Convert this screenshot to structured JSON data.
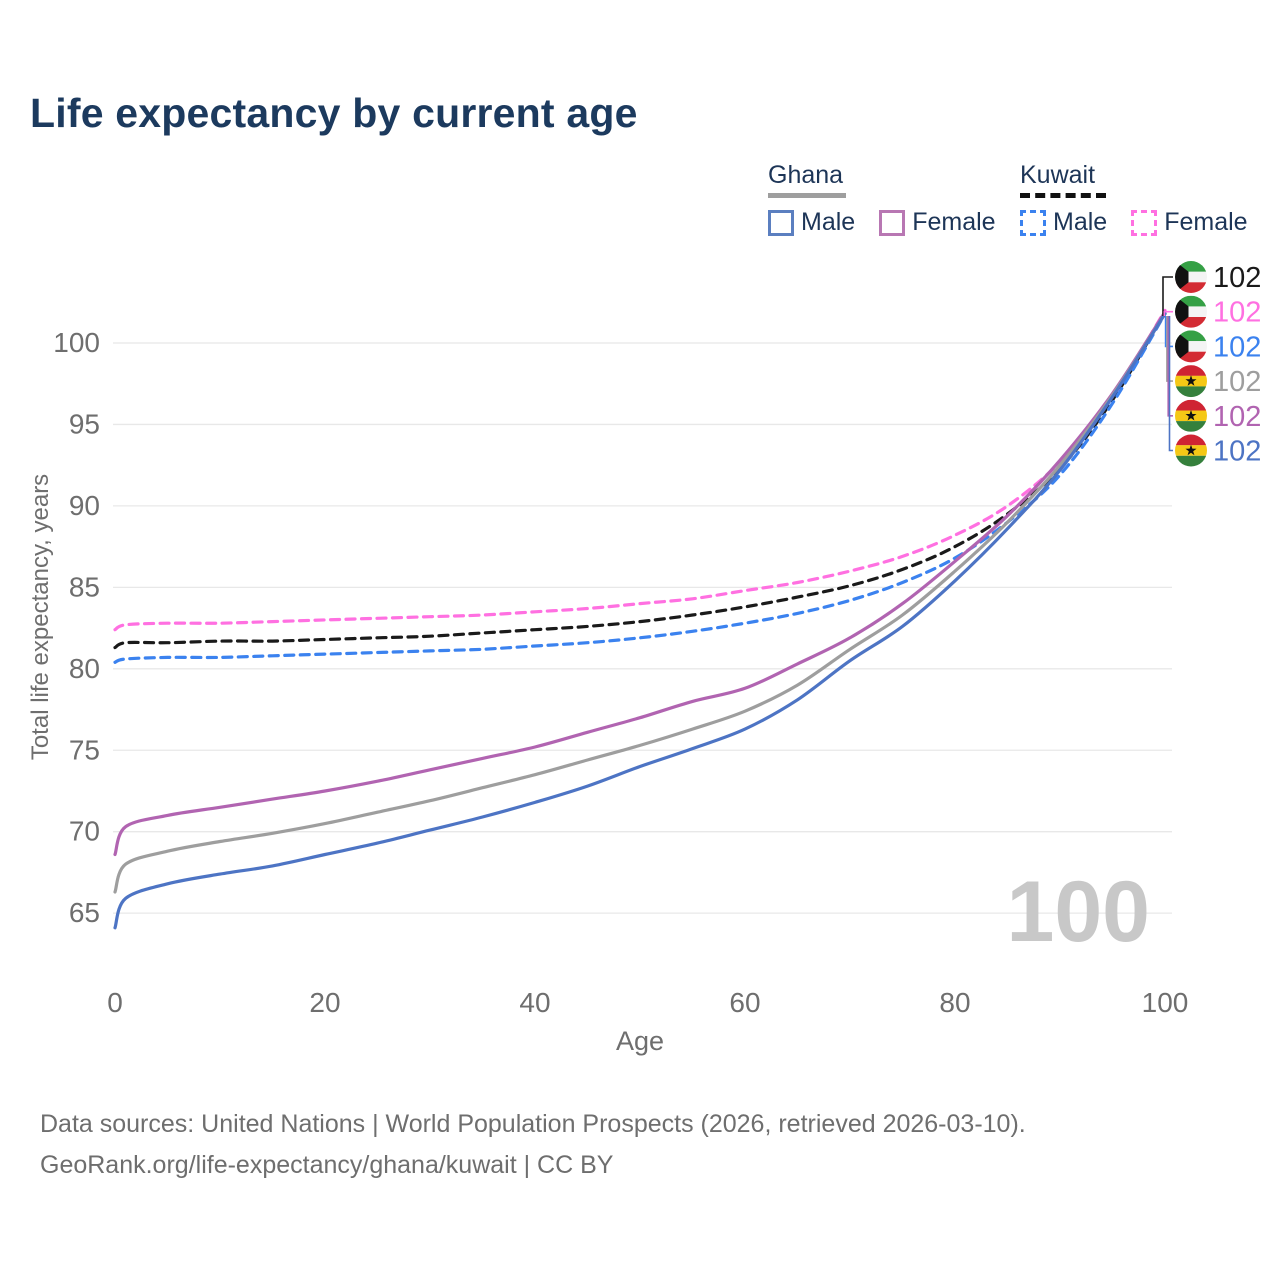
{
  "title": "Life expectancy by current age",
  "watermark_age": "100",
  "legend": {
    "groups": [
      {
        "country": "Ghana",
        "line_style": "solid",
        "line_color": "#9e9e9e",
        "items": [
          {
            "label": "Male",
            "color": "#5b7fc0",
            "style": "solid"
          },
          {
            "label": "Female",
            "color": "#b877b3",
            "style": "solid"
          }
        ]
      },
      {
        "country": "Kuwait",
        "line_style": "dashed",
        "line_color": "#111111",
        "items": [
          {
            "label": "Male",
            "color": "#3b82ef",
            "style": "dashed"
          },
          {
            "label": "Female",
            "color": "#ff70e1",
            "style": "dashed"
          }
        ]
      }
    ]
  },
  "chart_data": {
    "type": "line",
    "title": "Life expectancy by current age",
    "xlabel": "Age",
    "ylabel": "Total life expectancy, years",
    "xlim": [
      0,
      100
    ],
    "ylim": [
      63,
      103
    ],
    "x_ticks": [
      0,
      20,
      40,
      60,
      80,
      100
    ],
    "y_ticks": [
      65,
      70,
      75,
      80,
      85,
      90,
      95,
      100
    ],
    "grid": "horizontal",
    "legend_position": "top-right",
    "x": [
      0,
      1,
      5,
      10,
      15,
      20,
      25,
      30,
      35,
      40,
      45,
      50,
      55,
      60,
      65,
      70,
      75,
      80,
      85,
      90,
      95,
      100
    ],
    "series": [
      {
        "name": "Kuwait Female",
        "country": "Kuwait",
        "sex": "female",
        "color": "#ff70e1",
        "dash": true,
        "values": [
          82.4,
          82.7,
          82.8,
          82.8,
          82.9,
          83.0,
          83.1,
          83.2,
          83.3,
          83.5,
          83.7,
          84.0,
          84.3,
          84.8,
          85.3,
          86.0,
          86.9,
          88.2,
          90.0,
          92.7,
          96.7,
          102.0
        ]
      },
      {
        "name": "Kuwait",
        "country": "Kuwait",
        "sex": "all",
        "color": "#1a1a1a",
        "dash": true,
        "values": [
          81.3,
          81.6,
          81.6,
          81.7,
          81.7,
          81.8,
          81.9,
          82.0,
          82.2,
          82.4,
          82.6,
          82.9,
          83.3,
          83.8,
          84.4,
          85.1,
          86.1,
          87.5,
          89.5,
          92.3,
          96.5,
          101.9
        ]
      },
      {
        "name": "Kuwait Male",
        "country": "Kuwait",
        "sex": "male",
        "color": "#3b82ef",
        "dash": true,
        "values": [
          80.4,
          80.6,
          80.7,
          80.7,
          80.8,
          80.9,
          81.0,
          81.1,
          81.2,
          81.4,
          81.6,
          81.9,
          82.3,
          82.8,
          83.4,
          84.2,
          85.3,
          86.8,
          89.0,
          91.9,
          96.3,
          101.8
        ]
      },
      {
        "name": "Ghana Female",
        "country": "Ghana",
        "sex": "female",
        "color": "#b164b1",
        "dash": false,
        "values": [
          68.6,
          70.3,
          71.0,
          71.5,
          72.0,
          72.5,
          73.1,
          73.8,
          74.5,
          75.2,
          76.1,
          77.0,
          78.0,
          78.8,
          80.3,
          81.9,
          84.0,
          86.6,
          89.4,
          92.8,
          96.9,
          101.9
        ]
      },
      {
        "name": "Ghana",
        "country": "Ghana",
        "sex": "all",
        "color": "#9e9e9e",
        "dash": false,
        "values": [
          66.3,
          68.0,
          68.8,
          69.4,
          69.9,
          70.5,
          71.2,
          71.9,
          72.7,
          73.5,
          74.4,
          75.3,
          76.3,
          77.4,
          79.0,
          81.2,
          83.3,
          86.0,
          89.0,
          92.5,
          96.8,
          101.8
        ]
      },
      {
        "name": "Ghana Male",
        "country": "Ghana",
        "sex": "male",
        "color": "#4d74c4",
        "dash": false,
        "values": [
          64.1,
          65.9,
          66.8,
          67.4,
          67.9,
          68.6,
          69.3,
          70.1,
          70.9,
          71.8,
          72.8,
          74.0,
          75.1,
          76.3,
          78.1,
          80.5,
          82.6,
          85.4,
          88.6,
          92.2,
          96.7,
          101.8
        ]
      }
    ]
  },
  "end_labels": [
    {
      "series": "Kuwait",
      "flag": "kuwait",
      "value": "102",
      "color": "#1a1a1a"
    },
    {
      "series": "Kuwait Female",
      "flag": "kuwait",
      "value": "102",
      "color": "#ff70e1"
    },
    {
      "series": "Kuwait Male",
      "flag": "kuwait",
      "value": "102",
      "color": "#3b82ef"
    },
    {
      "series": "Ghana",
      "flag": "ghana",
      "value": "102",
      "color": "#9e9e9e"
    },
    {
      "series": "Ghana Female",
      "flag": "ghana",
      "value": "102",
      "color": "#b164b1"
    },
    {
      "series": "Ghana Male",
      "flag": "ghana",
      "value": "102",
      "color": "#4d74c4"
    }
  ],
  "flag_colors": {
    "kuwait": {
      "green": "#35a045",
      "white": "#f4f4f4",
      "red": "#d32b33",
      "black": "#111111"
    },
    "ghana": {
      "red": "#cf2433",
      "gold": "#f5c816",
      "green": "#35803c",
      "star": "#111111"
    }
  },
  "footer": {
    "line1": "Data sources: United Nations | World Population Prospects (2026, retrieved 2026-03-10).",
    "line2": "GeoRank.org/life-expectancy/ghana/kuwait | CC BY"
  }
}
